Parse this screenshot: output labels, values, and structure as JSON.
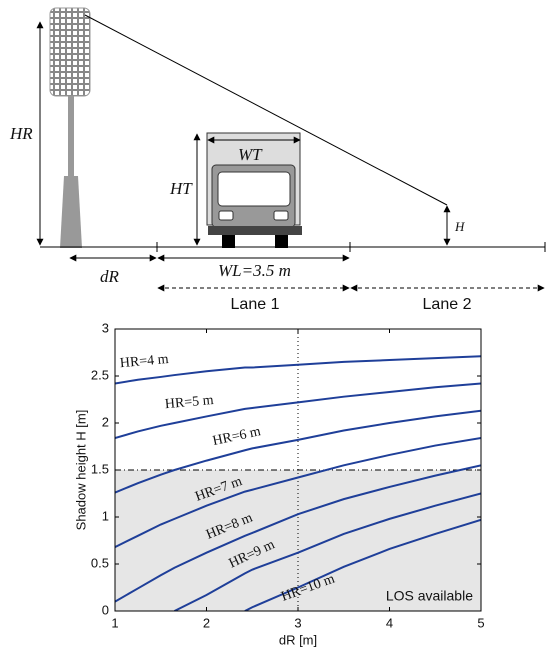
{
  "diagram": {
    "hr": "HR",
    "ht": "HT",
    "wt": "WT",
    "h": "H",
    "dr": "dR",
    "wl": "WL=3.5 m",
    "lane1": "Lane 1",
    "lane2": "Lane 2"
  },
  "chart_data": {
    "type": "line",
    "x_label": "dR [m]",
    "y_label": "Shadow height H [m]",
    "annotation": "LOS available",
    "x": [
      1,
      1.25,
      1.5,
      1.65,
      2,
      2.42,
      2.5,
      3,
      3.5,
      4,
      4.5,
      5
    ],
    "series": [
      {
        "name": "HR=4 m",
        "color": "#1f3f99",
        "values": [
          2.42,
          2.46,
          2.49,
          2.51,
          2.55,
          2.59,
          2.59,
          2.62,
          2.65,
          2.67,
          2.69,
          2.71
        ]
      },
      {
        "name": "HR=5 m",
        "color": "#1f3f99",
        "values": [
          1.84,
          1.91,
          1.97,
          2.0,
          2.07,
          2.15,
          2.16,
          2.22,
          2.28,
          2.33,
          2.38,
          2.42
        ]
      },
      {
        "name": "HR=6 m",
        "color": "#1f3f99",
        "values": [
          1.26,
          1.36,
          1.45,
          1.5,
          1.6,
          1.71,
          1.73,
          1.82,
          1.92,
          2.0,
          2.07,
          2.13
        ]
      },
      {
        "name": "HR=7 m",
        "color": "#1f3f99",
        "values": [
          0.68,
          0.8,
          0.92,
          0.98,
          1.12,
          1.27,
          1.29,
          1.42,
          1.55,
          1.66,
          1.76,
          1.84
        ]
      },
      {
        "name": "HR=8 m",
        "color": "#1f3f99",
        "values": [
          0.1,
          0.24,
          0.38,
          0.46,
          0.62,
          0.8,
          0.83,
          1.03,
          1.19,
          1.32,
          1.44,
          1.55
        ]
      },
      {
        "name": "HR=9 m",
        "color": "#1f3f99",
        "values": [
          null,
          null,
          null,
          0,
          0.17,
          0.4,
          0.44,
          0.62,
          0.82,
          0.98,
          1.12,
          1.25
        ]
      },
      {
        "name": "HR=10 m",
        "color": "#1f3f99",
        "values": [
          null,
          null,
          null,
          null,
          null,
          0,
          0.04,
          0.25,
          0.47,
          0.66,
          0.82,
          0.97
        ]
      }
    ],
    "threshold_y": 1.5,
    "marker_x": 3,
    "xlim": [
      1,
      5
    ],
    "xticks": [
      1,
      2,
      3,
      4,
      5
    ],
    "ylim": [
      0,
      3
    ],
    "yticks": [
      0,
      0.5,
      1,
      1.5,
      2,
      2.5,
      3
    ]
  }
}
